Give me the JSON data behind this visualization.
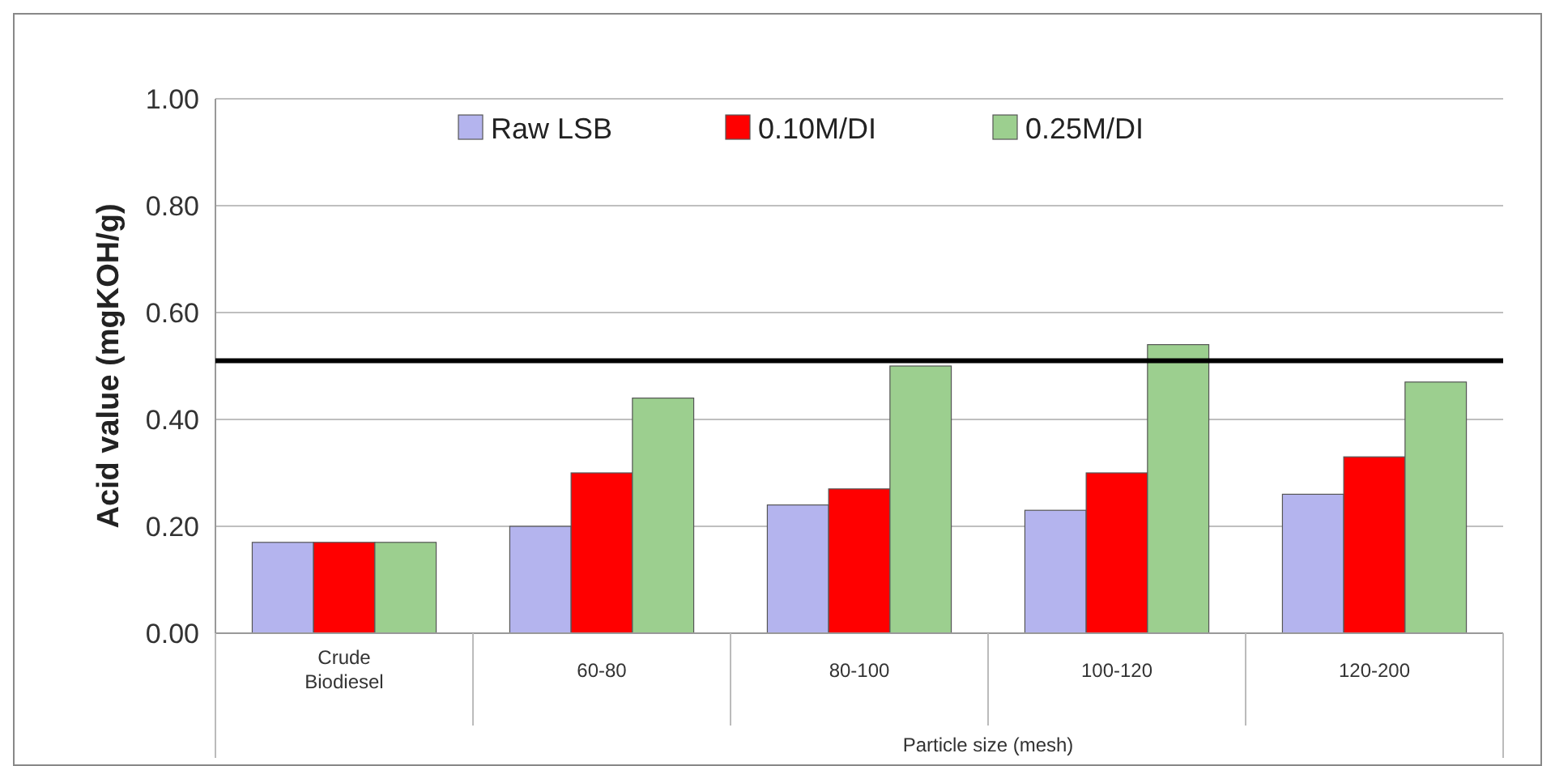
{
  "chart_data": {
    "type": "bar",
    "ylabel": "Acid value (mgKOH/g)",
    "xlabel": "Particle size (mesh)",
    "categories": [
      "Crude Biodiesel",
      "60-80",
      "80-100",
      "100-120",
      "120-200"
    ],
    "series": [
      {
        "name": "Raw LSB",
        "color": "#b4b4ee",
        "values": [
          0.17,
          0.2,
          0.24,
          0.23,
          0.26
        ]
      },
      {
        "name": "0.10M/DI",
        "color": "#ff0000",
        "values": [
          0.17,
          0.3,
          0.27,
          0.3,
          0.33
        ]
      },
      {
        "name": "0.25M/DI",
        "color": "#9ccf8f",
        "values": [
          0.17,
          0.44,
          0.5,
          0.54,
          0.47
        ]
      }
    ],
    "ylim": [
      0,
      1
    ],
    "yticks": [
      {
        "value": 0,
        "label": "0.00"
      },
      {
        "value": 0.2,
        "label": "0.20"
      },
      {
        "value": 0.4,
        "label": "0.40"
      },
      {
        "value": 0.6,
        "label": "0.60"
      },
      {
        "value": 0.8,
        "label": "0.80"
      },
      {
        "value": 1,
        "label": "1.00"
      }
    ],
    "grid": "y",
    "legend": "top",
    "ref_lines": [
      {
        "axis": "y",
        "value": 0.51,
        "color": "#000000"
      }
    ]
  }
}
